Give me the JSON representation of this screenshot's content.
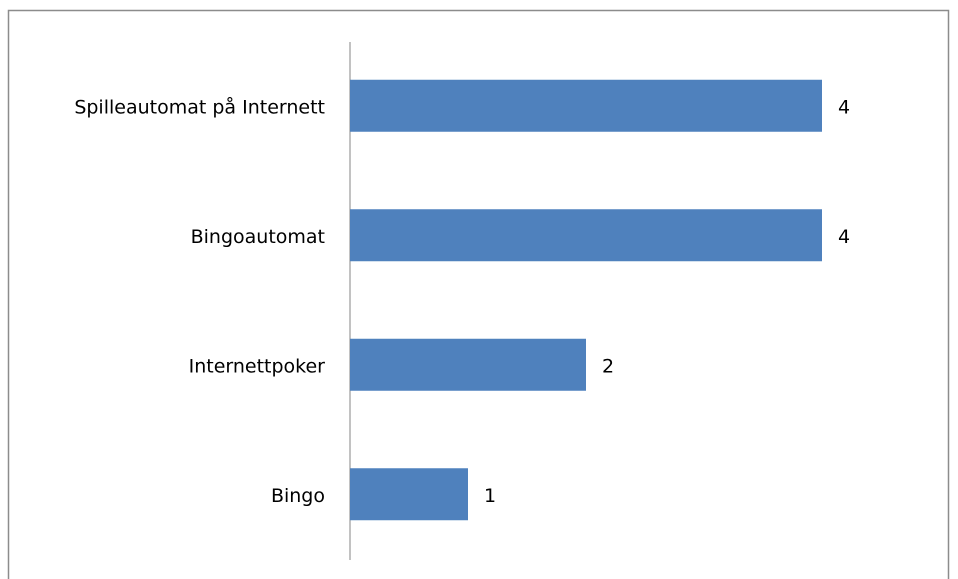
{
  "chart_data": {
    "type": "bar",
    "orientation": "horizontal",
    "categories": [
      "Spilleautomat på Internett",
      "Bingoautomat",
      "Internettpoker",
      "Bingo"
    ],
    "values": [
      4,
      4,
      2,
      1
    ],
    "color": "#4f81bd",
    "xlim": [
      0,
      5
    ]
  }
}
